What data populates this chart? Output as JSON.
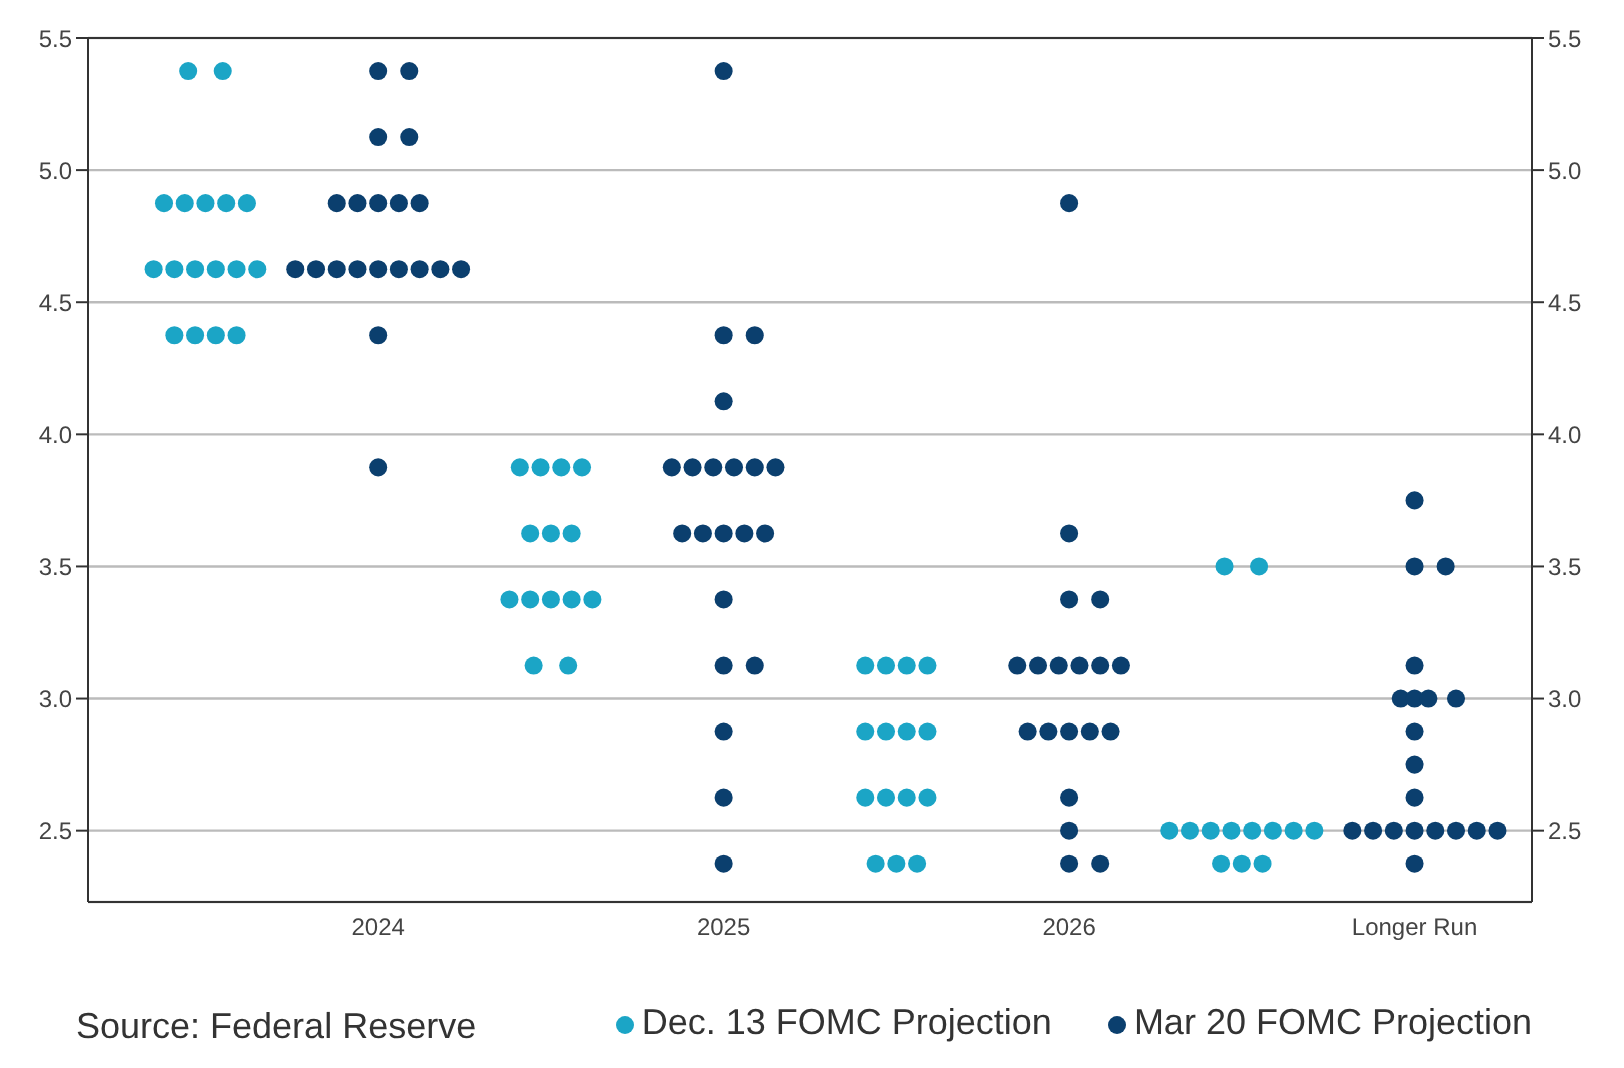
{
  "chart_data": {
    "type": "scatter",
    "marker": "circle",
    "grid": "y",
    "legend": "bottom",
    "xlim": [
      2023.16,
      2027.34
    ],
    "xticks": [
      2024,
      2025,
      2026,
      {
        "value": 2027,
        "label": "Longer Run"
      }
    ],
    "ylim": [
      2.23,
      5.5
    ],
    "yticks": [
      2.5,
      {
        "value": 3,
        "label": "3.0"
      },
      3.5,
      {
        "value": 4,
        "label": "4.0"
      },
      4.5,
      {
        "value": 5,
        "label": "5.0"
      },
      5.5
    ],
    "y2lim": [
      2.23,
      5.5
    ],
    "y2ticks": [
      2.5,
      {
        "value": 3,
        "label": "3.0"
      },
      3.5,
      {
        "value": 4,
        "label": "4.0"
      },
      4.5,
      {
        "value": 5,
        "label": "5.0"
      },
      5.5
    ],
    "annotations": [
      "Source: Federal Reserve"
    ],
    "series": [
      {
        "name": "Dec. 13 FOMC Projection",
        "color": "#1ba5c6",
        "x": [
          2023.45,
          2023.55,
          2023.38,
          2023.44,
          2023.5,
          2023.56,
          2023.62,
          2023.35,
          2023.41,
          2023.47,
          2023.53,
          2023.59,
          2023.65,
          2023.41,
          2023.47,
          2023.53,
          2023.59,
          2024.41,
          2024.47,
          2024.53,
          2024.59,
          2024.44,
          2024.5,
          2024.56,
          2024.38,
          2024.44,
          2024.5,
          2024.56,
          2024.62,
          2024.45,
          2024.55,
          2025.41,
          2025.47,
          2025.53,
          2025.59,
          2025.41,
          2025.47,
          2025.53,
          2025.59,
          2025.41,
          2025.47,
          2025.53,
          2025.59,
          2025.44,
          2025.5,
          2025.56,
          2026.45,
          2026.55,
          2026.29,
          2026.35,
          2026.41,
          2026.47,
          2026.53,
          2026.59,
          2026.65,
          2026.71,
          2026.44,
          2026.5,
          2026.56
        ],
        "values": [
          5.375,
          5.375,
          4.875,
          4.875,
          4.875,
          4.875,
          4.875,
          4.625,
          4.625,
          4.625,
          4.625,
          4.625,
          4.625,
          4.375,
          4.375,
          4.375,
          4.375,
          3.875,
          3.875,
          3.875,
          3.875,
          3.625,
          3.625,
          3.625,
          3.375,
          3.375,
          3.375,
          3.375,
          3.375,
          3.125,
          3.125,
          3.125,
          3.125,
          3.125,
          3.125,
          2.875,
          2.875,
          2.875,
          2.875,
          2.625,
          2.625,
          2.625,
          2.625,
          2.375,
          2.375,
          2.375,
          3.5,
          3.5,
          2.5,
          2.5,
          2.5,
          2.5,
          2.5,
          2.5,
          2.5,
          2.5,
          2.375,
          2.375,
          2.375
        ]
      },
      {
        "name": "Mar 20 FOMC Projection",
        "color": "#0b3f6e",
        "x": [
          2024,
          2024.09,
          2024,
          2024.09,
          2023.88,
          2023.94,
          2024,
          2024.06,
          2024.12,
          2023.76,
          2023.82,
          2023.88,
          2023.94,
          2024,
          2024.06,
          2024.12,
          2024.18,
          2024.24,
          2024,
          2024,
          2025,
          2025,
          2025.09,
          2025,
          2024.85,
          2024.91,
          2024.97,
          2025.03,
          2025.09,
          2025.15,
          2024.88,
          2024.94,
          2025,
          2025.06,
          2025.12,
          2025,
          2025,
          2025.09,
          2025,
          2025,
          2025,
          2026,
          2026,
          2026,
          2026.09,
          2025.85,
          2025.91,
          2025.97,
          2026.03,
          2026.09,
          2026.15,
          2025.88,
          2025.94,
          2026,
          2026.06,
          2026.12,
          2026,
          2026,
          2026,
          2026.09,
          2027,
          2027,
          2027.09,
          2027,
          2026.96,
          2027,
          2027.04,
          2027.12,
          2027,
          2027,
          2027,
          2026.82,
          2026.88,
          2026.94,
          2027,
          2027.06,
          2027.12,
          2027.18,
          2027.24,
          2027
        ],
        "values": [
          5.375,
          5.375,
          5.125,
          5.125,
          4.875,
          4.875,
          4.875,
          4.875,
          4.875,
          4.625,
          4.625,
          4.625,
          4.625,
          4.625,
          4.625,
          4.625,
          4.625,
          4.625,
          4.375,
          3.875,
          5.375,
          4.375,
          4.375,
          4.125,
          3.875,
          3.875,
          3.875,
          3.875,
          3.875,
          3.875,
          3.625,
          3.625,
          3.625,
          3.625,
          3.625,
          3.375,
          3.125,
          3.125,
          2.875,
          2.625,
          2.375,
          4.875,
          3.625,
          3.375,
          3.375,
          3.125,
          3.125,
          3.125,
          3.125,
          3.125,
          3.125,
          2.875,
          2.875,
          2.875,
          2.875,
          2.875,
          2.625,
          2.5,
          2.375,
          2.375,
          3.75,
          3.5,
          3.5,
          3.125,
          3,
          3,
          3,
          3,
          2.875,
          2.75,
          2.625,
          2.5,
          2.5,
          2.5,
          2.5,
          2.5,
          2.5,
          2.5,
          2.5,
          2.375
        ]
      }
    ]
  }
}
